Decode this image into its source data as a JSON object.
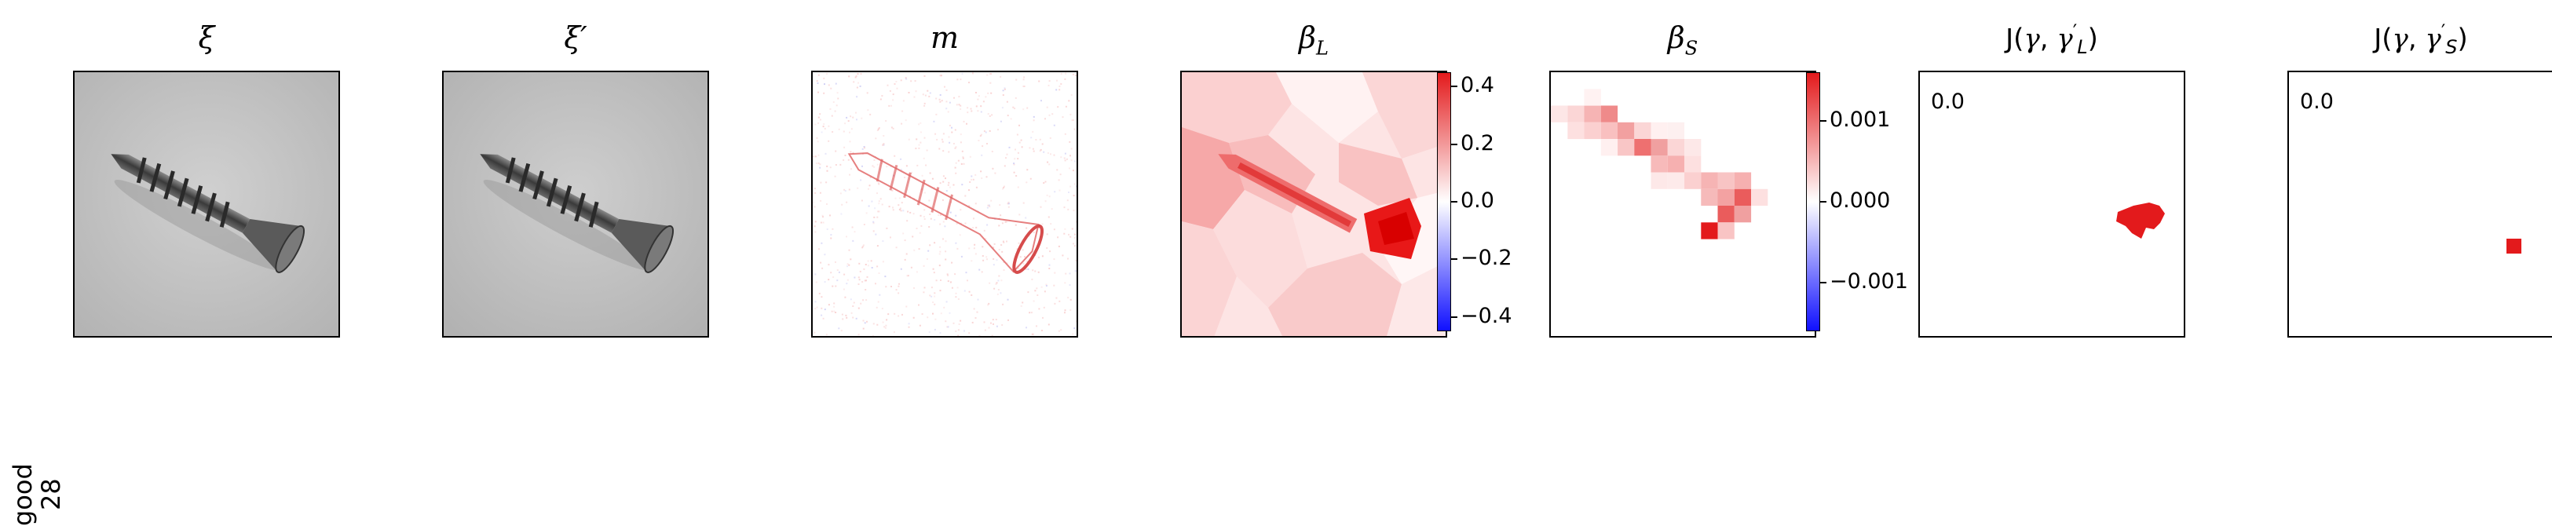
{
  "row_label": {
    "line1": "good",
    "line2": "28"
  },
  "panels": {
    "xi": {
      "title": "ξ"
    },
    "xi_prime": {
      "title": "ξ′"
    },
    "m": {
      "title": "m"
    },
    "beta_L": {
      "title_main": "β",
      "title_sub": "L"
    },
    "beta_S": {
      "title_main": "β",
      "title_sub": "S"
    },
    "J_L": {
      "title_prefix": "J(",
      "gamma": "γ",
      "sep": ", ",
      "gamma2": "γ",
      "prime": "′",
      "sub": "L",
      "close": ")",
      "value": "0.0"
    },
    "J_S": {
      "title_prefix": "J(",
      "gamma": "γ",
      "sep": ", ",
      "gamma2": "γ",
      "prime": "′",
      "sub": "S",
      "close": ")",
      "value": "0.0"
    }
  },
  "colorbars": {
    "beta_L": {
      "ticks": [
        "0.4",
        "0.2",
        "0.0",
        "−0.2",
        "−0.4"
      ],
      "range": [
        -0.45,
        0.45
      ]
    },
    "beta_S": {
      "ticks": [
        "0.001",
        "0.000",
        "−0.001"
      ],
      "range": [
        -0.0016,
        0.0016
      ]
    }
  },
  "colors": {
    "red": "#e31a1c",
    "blue": "#1010ff",
    "gray_bg": "#c8c8c8"
  }
}
